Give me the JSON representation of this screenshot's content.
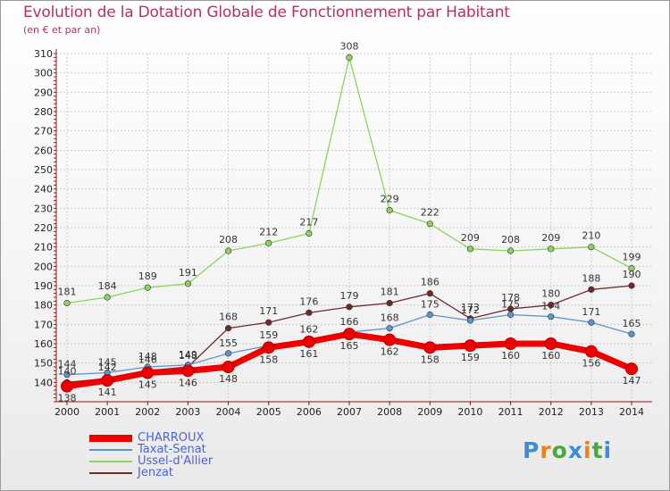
{
  "header": {
    "title": "Evolution de la Dotation Globale de Fonctionnement par Habitant",
    "subtitle": "(en € et par an)"
  },
  "brand": {
    "logo_text": "Proxiti",
    "logo_colors": [
      "#3a8ed6",
      "#e8821e",
      "#4aa83a",
      "#3a8ed6",
      "#e8821e",
      "#4aa83a",
      "#3a8ed6"
    ]
  },
  "colors": {
    "title": "#b5325a",
    "axis": "#8b1a1a",
    "grid": "#cccccc"
  },
  "chart_data": {
    "type": "line",
    "title": "Evolution de la Dotation Globale de Fonctionnement par Habitant",
    "subtitle": "(en € et par an)",
    "xlabel": "",
    "ylabel": "",
    "x": [
      "2000",
      "2001",
      "2002",
      "2003",
      "2004",
      "2005",
      "2006",
      "2007",
      "2008",
      "2009",
      "2010",
      "2011",
      "2012",
      "2013",
      "2014"
    ],
    "ylim": [
      130,
      310
    ],
    "yticks": [
      140,
      150,
      160,
      170,
      180,
      190,
      200,
      210,
      220,
      230,
      240,
      250,
      260,
      270,
      280,
      290,
      300,
      310
    ],
    "grid": true,
    "legend_position": "bottom-left",
    "series": [
      {
        "name": "CHARROUX",
        "color": "#ee0000",
        "values": [
          138,
          141,
          145,
          146,
          148,
          158,
          161,
          165,
          162,
          158,
          159,
          160,
          160,
          156,
          147
        ]
      },
      {
        "name": "Taxat-Senat",
        "color": "#5b94cf",
        "values": [
          144,
          145,
          148,
          149,
          155,
          159,
          162,
          166,
          168,
          175,
          172,
          175,
          174,
          171,
          165
        ]
      },
      {
        "name": "Ussel-d'Allier",
        "color": "#8dd35f",
        "values": [
          181,
          184,
          189,
          191,
          208,
          212,
          217,
          308,
          229,
          222,
          209,
          208,
          209,
          210,
          199
        ]
      },
      {
        "name": "Jenzat",
        "color": "#6e2a2a",
        "values": [
          140,
          142,
          146,
          148,
          168,
          171,
          176,
          179,
          181,
          186,
          173,
          178,
          180,
          188,
          190
        ]
      }
    ]
  }
}
